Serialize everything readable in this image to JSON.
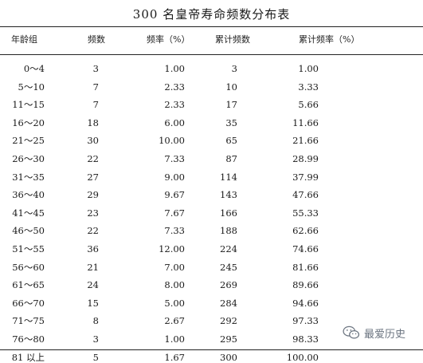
{
  "table": {
    "title": "300 名皇帝寿命频数分布表",
    "headers": {
      "age_group": "年龄组",
      "frequency": "频数",
      "rate": "频率（%）",
      "cumulative": "累计频数",
      "cumulative_rate": "累计频率（%）"
    },
    "rows": [
      {
        "age": "0～4",
        "freq": "3",
        "rate": "1.00",
        "cum": "3",
        "cum_rate": "1.00"
      },
      {
        "age": "5～10",
        "freq": "7",
        "rate": "2.33",
        "cum": "10",
        "cum_rate": "3.33"
      },
      {
        "age": "11～15",
        "freq": "7",
        "rate": "2.33",
        "cum": "17",
        "cum_rate": "5.66"
      },
      {
        "age": "16～20",
        "freq": "18",
        "rate": "6.00",
        "cum": "35",
        "cum_rate": "11.66"
      },
      {
        "age": "21～25",
        "freq": "30",
        "rate": "10.00",
        "cum": "65",
        "cum_rate": "21.66"
      },
      {
        "age": "26～30",
        "freq": "22",
        "rate": "7.33",
        "cum": "87",
        "cum_rate": "28.99"
      },
      {
        "age": "31～35",
        "freq": "27",
        "rate": "9.00",
        "cum": "114",
        "cum_rate": "37.99"
      },
      {
        "age": "36～40",
        "freq": "29",
        "rate": "9.67",
        "cum": "143",
        "cum_rate": "47.66"
      },
      {
        "age": "41～45",
        "freq": "23",
        "rate": "7.67",
        "cum": "166",
        "cum_rate": "55.33"
      },
      {
        "age": "46～50",
        "freq": "22",
        "rate": "7.33",
        "cum": "188",
        "cum_rate": "62.66"
      },
      {
        "age": "51～55",
        "freq": "36",
        "rate": "12.00",
        "cum": "224",
        "cum_rate": "74.66"
      },
      {
        "age": "56～60",
        "freq": "21",
        "rate": "7.00",
        "cum": "245",
        "cum_rate": "81.66"
      },
      {
        "age": "61～65",
        "freq": "24",
        "rate": "8.00",
        "cum": "269",
        "cum_rate": "89.66"
      },
      {
        "age": "66～70",
        "freq": "15",
        "rate": "5.00",
        "cum": "284",
        "cum_rate": "94.66"
      },
      {
        "age": "71～75",
        "freq": "8",
        "rate": "2.67",
        "cum": "292",
        "cum_rate": "97.33"
      },
      {
        "age": "76～80",
        "freq": "3",
        "rate": "1.00",
        "cum": "295",
        "cum_rate": "98.33"
      },
      {
        "age": "81 以上",
        "freq": "5",
        "rate": "1.67",
        "cum": "300",
        "cum_rate": "100.00"
      }
    ]
  },
  "watermark": {
    "text": "最爱历史",
    "icon": "wechat-icon",
    "color": "#6b7480"
  }
}
